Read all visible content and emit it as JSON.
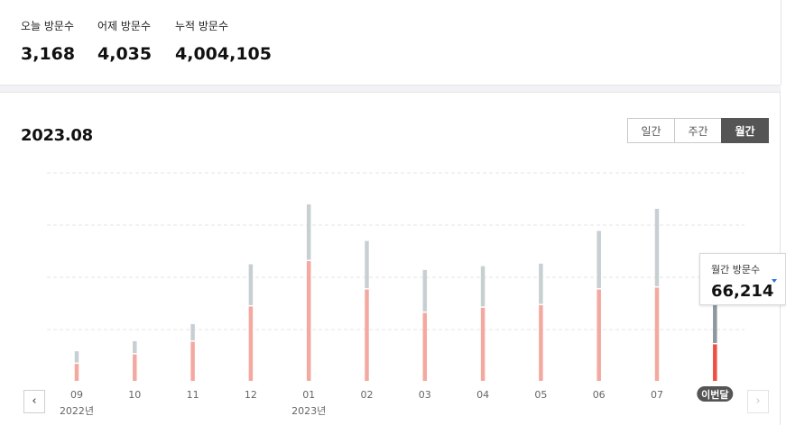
{
  "summary": {
    "today_label": "오늘 방문수",
    "today_value": "3,168",
    "yesterday_label": "어제 방문수",
    "yesterday_value": "4,035",
    "total_label": "누적 방문수",
    "total_value": "4,004,105"
  },
  "period": "2023.08",
  "tabs": [
    {
      "label": "일간",
      "active": false
    },
    {
      "label": "주간",
      "active": false
    },
    {
      "label": "월간",
      "active": true
    }
  ],
  "tooltip": {
    "label": "월간 방문수",
    "value": "66,214"
  },
  "nav": {
    "prev_icon": "chevron-left-icon",
    "next_icon": "chevron-right-icon"
  },
  "colors": {
    "primary_bar": "#f4a9a0",
    "secondary_bar": "#c8cfd3",
    "current_primary": "#f04f43",
    "current_secondary": "#8e989f",
    "active_tab": "#555555"
  },
  "chart_data": {
    "type": "bar",
    "categories": [
      "09",
      "10",
      "11",
      "12",
      "01",
      "02",
      "03",
      "04",
      "05",
      "06",
      "07",
      "이번달"
    ],
    "year_labels": [
      {
        "index": 0,
        "label": "2022년"
      },
      {
        "index": 4,
        "label": "2023년"
      }
    ],
    "highlight_index": 11,
    "series": [
      {
        "values": [
          27,
          42,
          62,
          118,
          190,
          145,
          108,
          116,
          120,
          145,
          148,
          58
        ]
      },
      {
        "values": [
          47,
          63,
          90,
          185,
          280,
          222,
          176,
          182,
          186,
          238,
          273,
          129
        ]
      }
    ],
    "ylim": [
      0,
      330
    ],
    "grid": true
  }
}
